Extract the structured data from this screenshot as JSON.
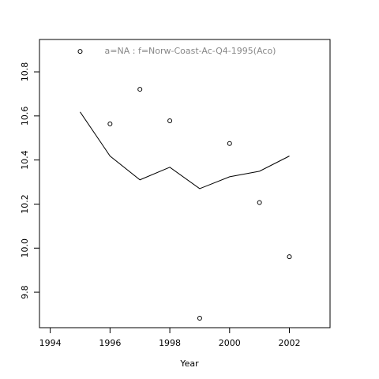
{
  "chart_data": {
    "type": "scatter",
    "title": "a=NA  :  f=Norw-Coast-Ac-Q4-1995(Aco)",
    "x_label": "Year",
    "x": [
      1995,
      1996,
      1997,
      1998,
      1999,
      2000,
      2001,
      2002
    ],
    "points": {
      "color": "#000000",
      "values": [
        10.893,
        10.564,
        10.721,
        10.578,
        9.682,
        10.475,
        10.207,
        9.961
      ]
    },
    "line": {
      "color": "#000000",
      "values": [
        10.618,
        10.418,
        10.31,
        10.367,
        10.27,
        10.324,
        10.349,
        10.418
      ]
    },
    "xlim": [
      1993.64,
      2003.36
    ],
    "xticks": [
      1994,
      1996,
      1998,
      2000,
      2002
    ],
    "ylim": [
      9.639,
      10.947
    ],
    "yticks": [
      {
        "value": 9.8,
        "label": "9.8"
      },
      {
        "value": 10.0,
        "label": "10.0"
      },
      {
        "value": 10.2,
        "label": "10.2"
      },
      {
        "value": 10.4,
        "label": "10.4"
      },
      {
        "value": 10.6,
        "label": "10.6"
      },
      {
        "value": 10.8,
        "label": "10.8"
      }
    ]
  }
}
